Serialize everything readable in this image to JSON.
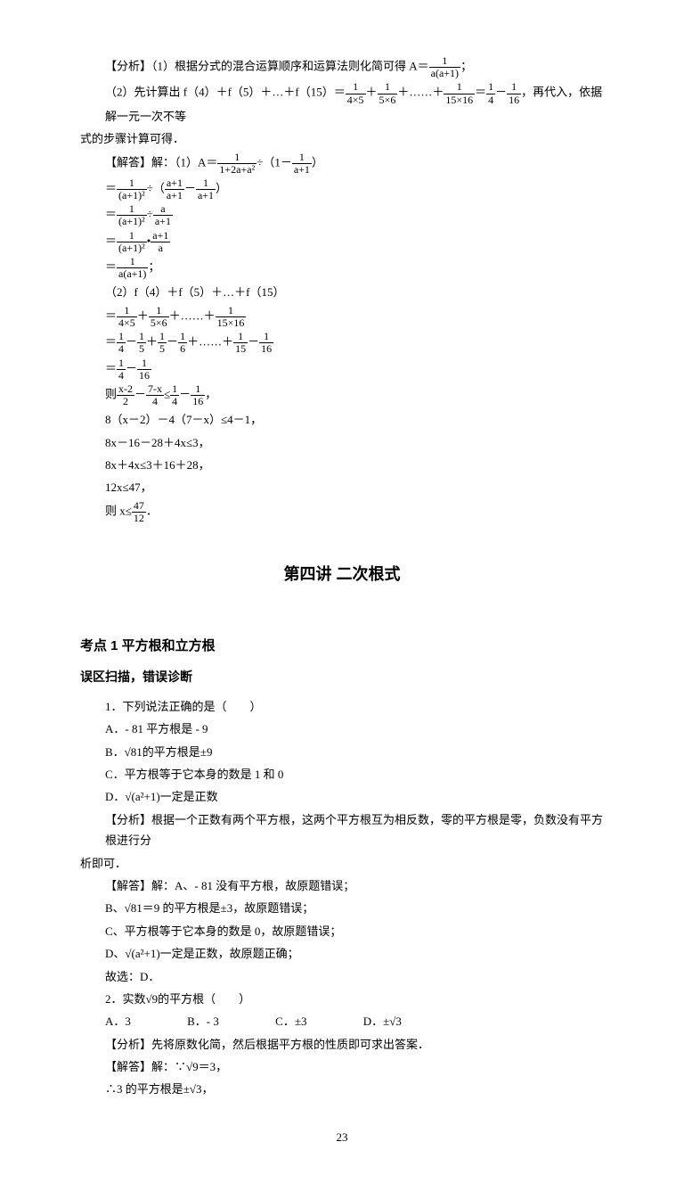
{
  "p1": "【分析】（1）根据分式的混合运算顺序和运算法则化简可得 A＝",
  "p1b": "；",
  "p2a": "（2）先计算出 f（4）＋f（5）＋…＋f（15）＝",
  "p2b": "＋",
  "p2c": "＋……＋",
  "p2d": "＝",
  "p2e": "－",
  "p2f": "，再代入，依据解一元一次不等",
  "p3": "式的步骤计算可得．",
  "s1a": "【解答】解：（1）A＝",
  "s1b": "÷（1－",
  "s1c": "）",
  "s2a": "＝",
  "s2b": "÷（",
  "s2c": "－",
  "s2d": "）",
  "s3a": "＝",
  "s3b": "÷",
  "s4a": "＝",
  "s4b": "•",
  "s5a": "＝",
  "s5b": "；",
  "s6": "（2）f（4）＋f（5）＋…＋f（15）",
  "s7a": "＝",
  "s7b": "＋",
  "s7c": "＋……＋",
  "s8a": "＝",
  "s8b": "－",
  "s8c": "＋",
  "s8d": "－",
  "s8e": "＋……＋",
  "s8f": "－",
  "s9a": "＝",
  "s9b": "－",
  "s10a": "则",
  "s10b": "－",
  "s10c": "≤",
  "s10d": "－",
  "s10e": "，",
  "s11": "8（x－2）－4（7－x）≤4－1，",
  "s12": "8x－16－28＋4x≤3，",
  "s13": "8x＋4x≤3＋16＋28，",
  "s14": "12x≤47，",
  "s15a": "则 x≤",
  "s15b": "．",
  "title": "第四讲  二次根式",
  "kp": "考点 1 平方根和立方根",
  "wq": "误区扫描，错误诊断",
  "q1": "1．下列说法正确的是（　　）",
  "q1a": "A．- 81 平方根是 - 9",
  "q1b": "B．√81的平方根是±9",
  "q1c": "C．平方根等于它本身的数是 1 和 0",
  "q1d": "D．√(a²+1)一定是正数",
  "q1f": "【分析】根据一个正数有两个平方根，这两个平方根互为相反数，零的平方根是零，负数没有平方根进行分",
  "q1f2": "析即可．",
  "q1j1": "【解答】解：A、- 81 没有平方根，故原题错误；",
  "q1j2": "B、√81＝9 的平方根是±3，故原题错误；",
  "q1j3": "C、平方根等于它本身的数是 0，故原题错误；",
  "q1j4": "D、√(a²+1)一定是正数，故原题正确；",
  "q1j5": "故选：D．",
  "q2": "2．实数√9的平方根（　　）",
  "q2a": "A．3",
  "q2b": "B．- 3",
  "q2c": "C．±3",
  "q2d": "D．±√3",
  "q2f": "【分析】先将原数化简，然后根据平方根的性质即可求出答案．",
  "q2j1": "【解答】解：∵√9＝3，",
  "q2j2": "∴3 的平方根是±√3，",
  "page": "23",
  "frac": {
    "f1": {
      "n": "1",
      "d": "a(a+1)"
    },
    "f2": {
      "n": "1",
      "d": "4×5"
    },
    "f3": {
      "n": "1",
      "d": "5×6"
    },
    "f4": {
      "n": "1",
      "d": "15×16"
    },
    "f5": {
      "n": "1",
      "d": "4"
    },
    "f6": {
      "n": "1",
      "d": "16"
    },
    "f7": {
      "n": "1",
      "d": "1+2a+a²"
    },
    "f8": {
      "n": "1",
      "d": "a+1"
    },
    "f9": {
      "n": "1",
      "d": "(a+1)²"
    },
    "f10": {
      "n": "a+1",
      "d": "a+1"
    },
    "f11": {
      "n": "a",
      "d": "a+1"
    },
    "f12": {
      "n": "a+1",
      "d": "a"
    },
    "f13": {
      "n": "1",
      "d": "5"
    },
    "f14": {
      "n": "1",
      "d": "6"
    },
    "f15": {
      "n": "1",
      "d": "15"
    },
    "f16": {
      "n": "x-2",
      "d": "2"
    },
    "f17": {
      "n": "7-x",
      "d": "4"
    },
    "f18": {
      "n": "47",
      "d": "12"
    }
  }
}
